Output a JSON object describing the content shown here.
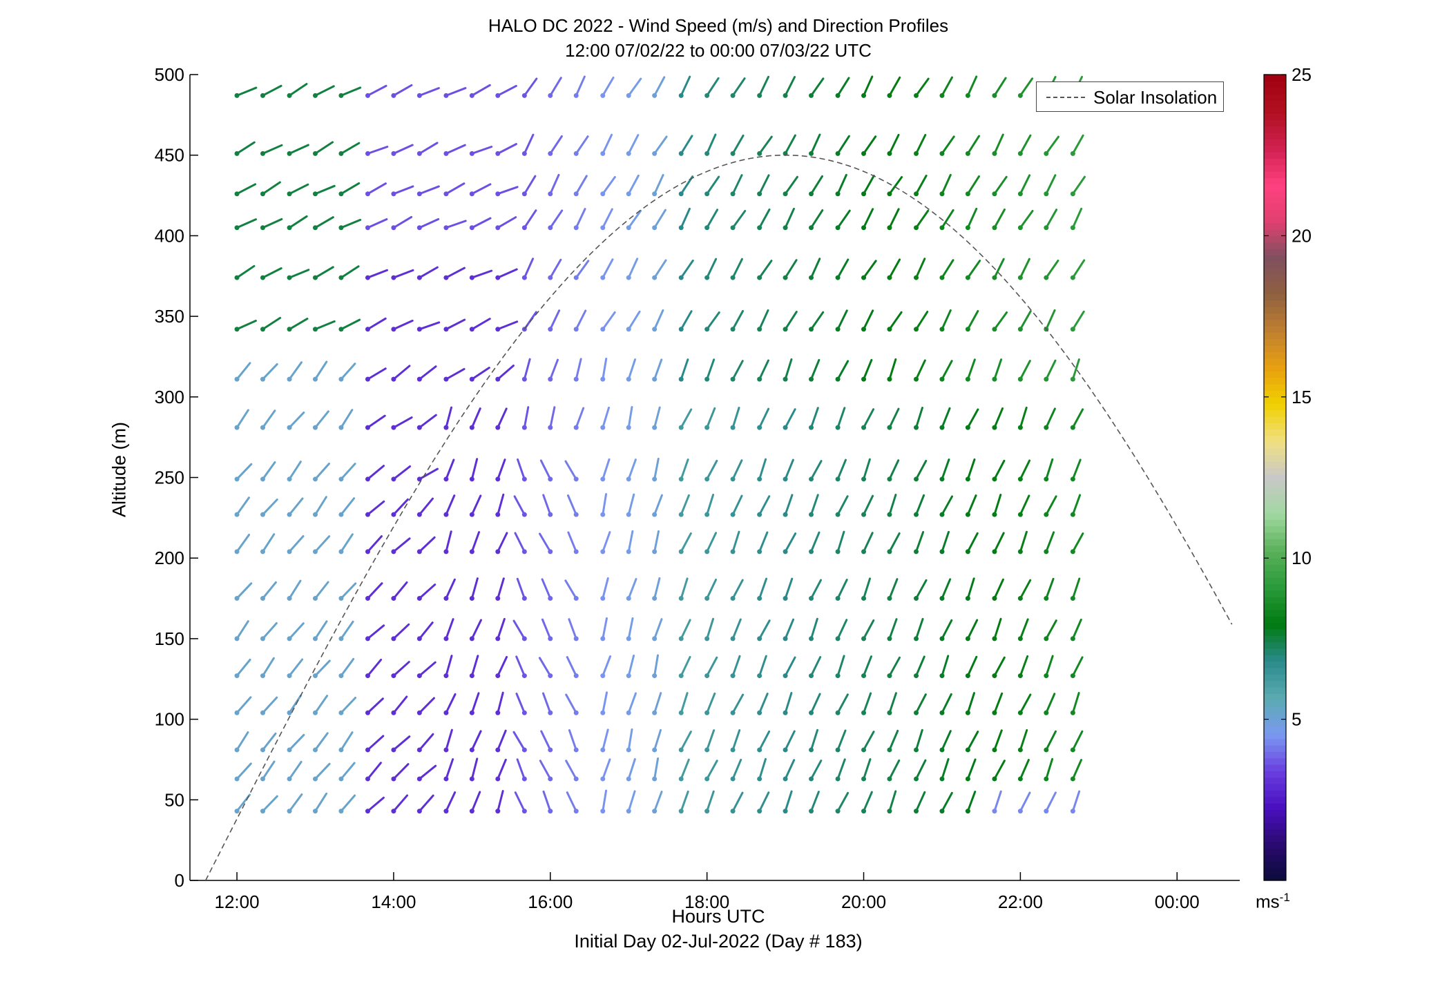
{
  "chart_data": {
    "type": "wind-barb-profile",
    "title": "HALO DC 2022 - Wind Speed (m/s) and Direction Profiles",
    "subtitle": "12:00 07/02/22 to 00:00 07/03/22  UTC",
    "xlabel": "Hours UTC",
    "xlabel_line2": "Initial Day 02-Jul-2022 (Day # 183)",
    "ylabel": "Altitude (m)",
    "xlim_hours": [
      11.4,
      24.8
    ],
    "ylim": [
      0,
      500
    ],
    "xticks": [
      {
        "hour": 12,
        "label": "12:00"
      },
      {
        "hour": 14,
        "label": "14:00"
      },
      {
        "hour": 16,
        "label": "16:00"
      },
      {
        "hour": 18,
        "label": "18:00"
      },
      {
        "hour": 20,
        "label": "20:00"
      },
      {
        "hour": 22,
        "label": "22:00"
      },
      {
        "hour": 24,
        "label": "00:00"
      }
    ],
    "yticks": [
      0,
      50,
      100,
      150,
      200,
      250,
      300,
      350,
      400,
      450,
      500
    ],
    "colorbar": {
      "range": [
        0,
        25
      ],
      "ticks": [
        5,
        10,
        15,
        20,
        25
      ],
      "unit": "ms",
      "unit_exponent": "-1",
      "colors": [
        "#0b0b3a",
        "#2a0a70",
        "#4a10c0",
        "#6a40e0",
        "#7a9af0",
        "#5aaab0",
        "#2a8a8a",
        "#007a10",
        "#2a9a3a",
        "#5ab05a",
        "#a0d8a0",
        "#c8c8c8",
        "#f0e080",
        "#f0d000",
        "#e8a010",
        "#c08030",
        "#906040",
        "#805060",
        "#e04070",
        "#ff4080",
        "#d02050",
        "#b01020",
        "#a00010"
      ]
    },
    "legend": {
      "entries": [
        "Solar Insolation"
      ],
      "position": "top-right"
    },
    "solar_insolation": {
      "peak_hour": 19.0,
      "peak_alt": 450,
      "start_hour": 11.6,
      "end_hour": 24.7,
      "end_alt": 150
    },
    "time_hours": [
      12.0,
      12.33,
      12.67,
      13.0,
      13.33,
      13.67,
      14.0,
      14.33,
      14.67,
      15.0,
      15.33,
      15.67,
      16.0,
      16.33,
      16.67,
      17.0,
      17.33,
      17.67,
      18.0,
      18.33,
      18.67,
      19.0,
      19.33,
      19.67,
      20.0,
      20.33,
      20.67,
      21.0,
      21.33,
      21.67,
      22.0,
      22.33,
      22.67
    ],
    "altitudes_m": [
      43,
      63,
      81,
      104,
      127,
      150,
      175,
      204,
      227,
      249,
      281,
      311,
      342,
      374,
      405,
      426,
      451,
      487
    ]
  }
}
